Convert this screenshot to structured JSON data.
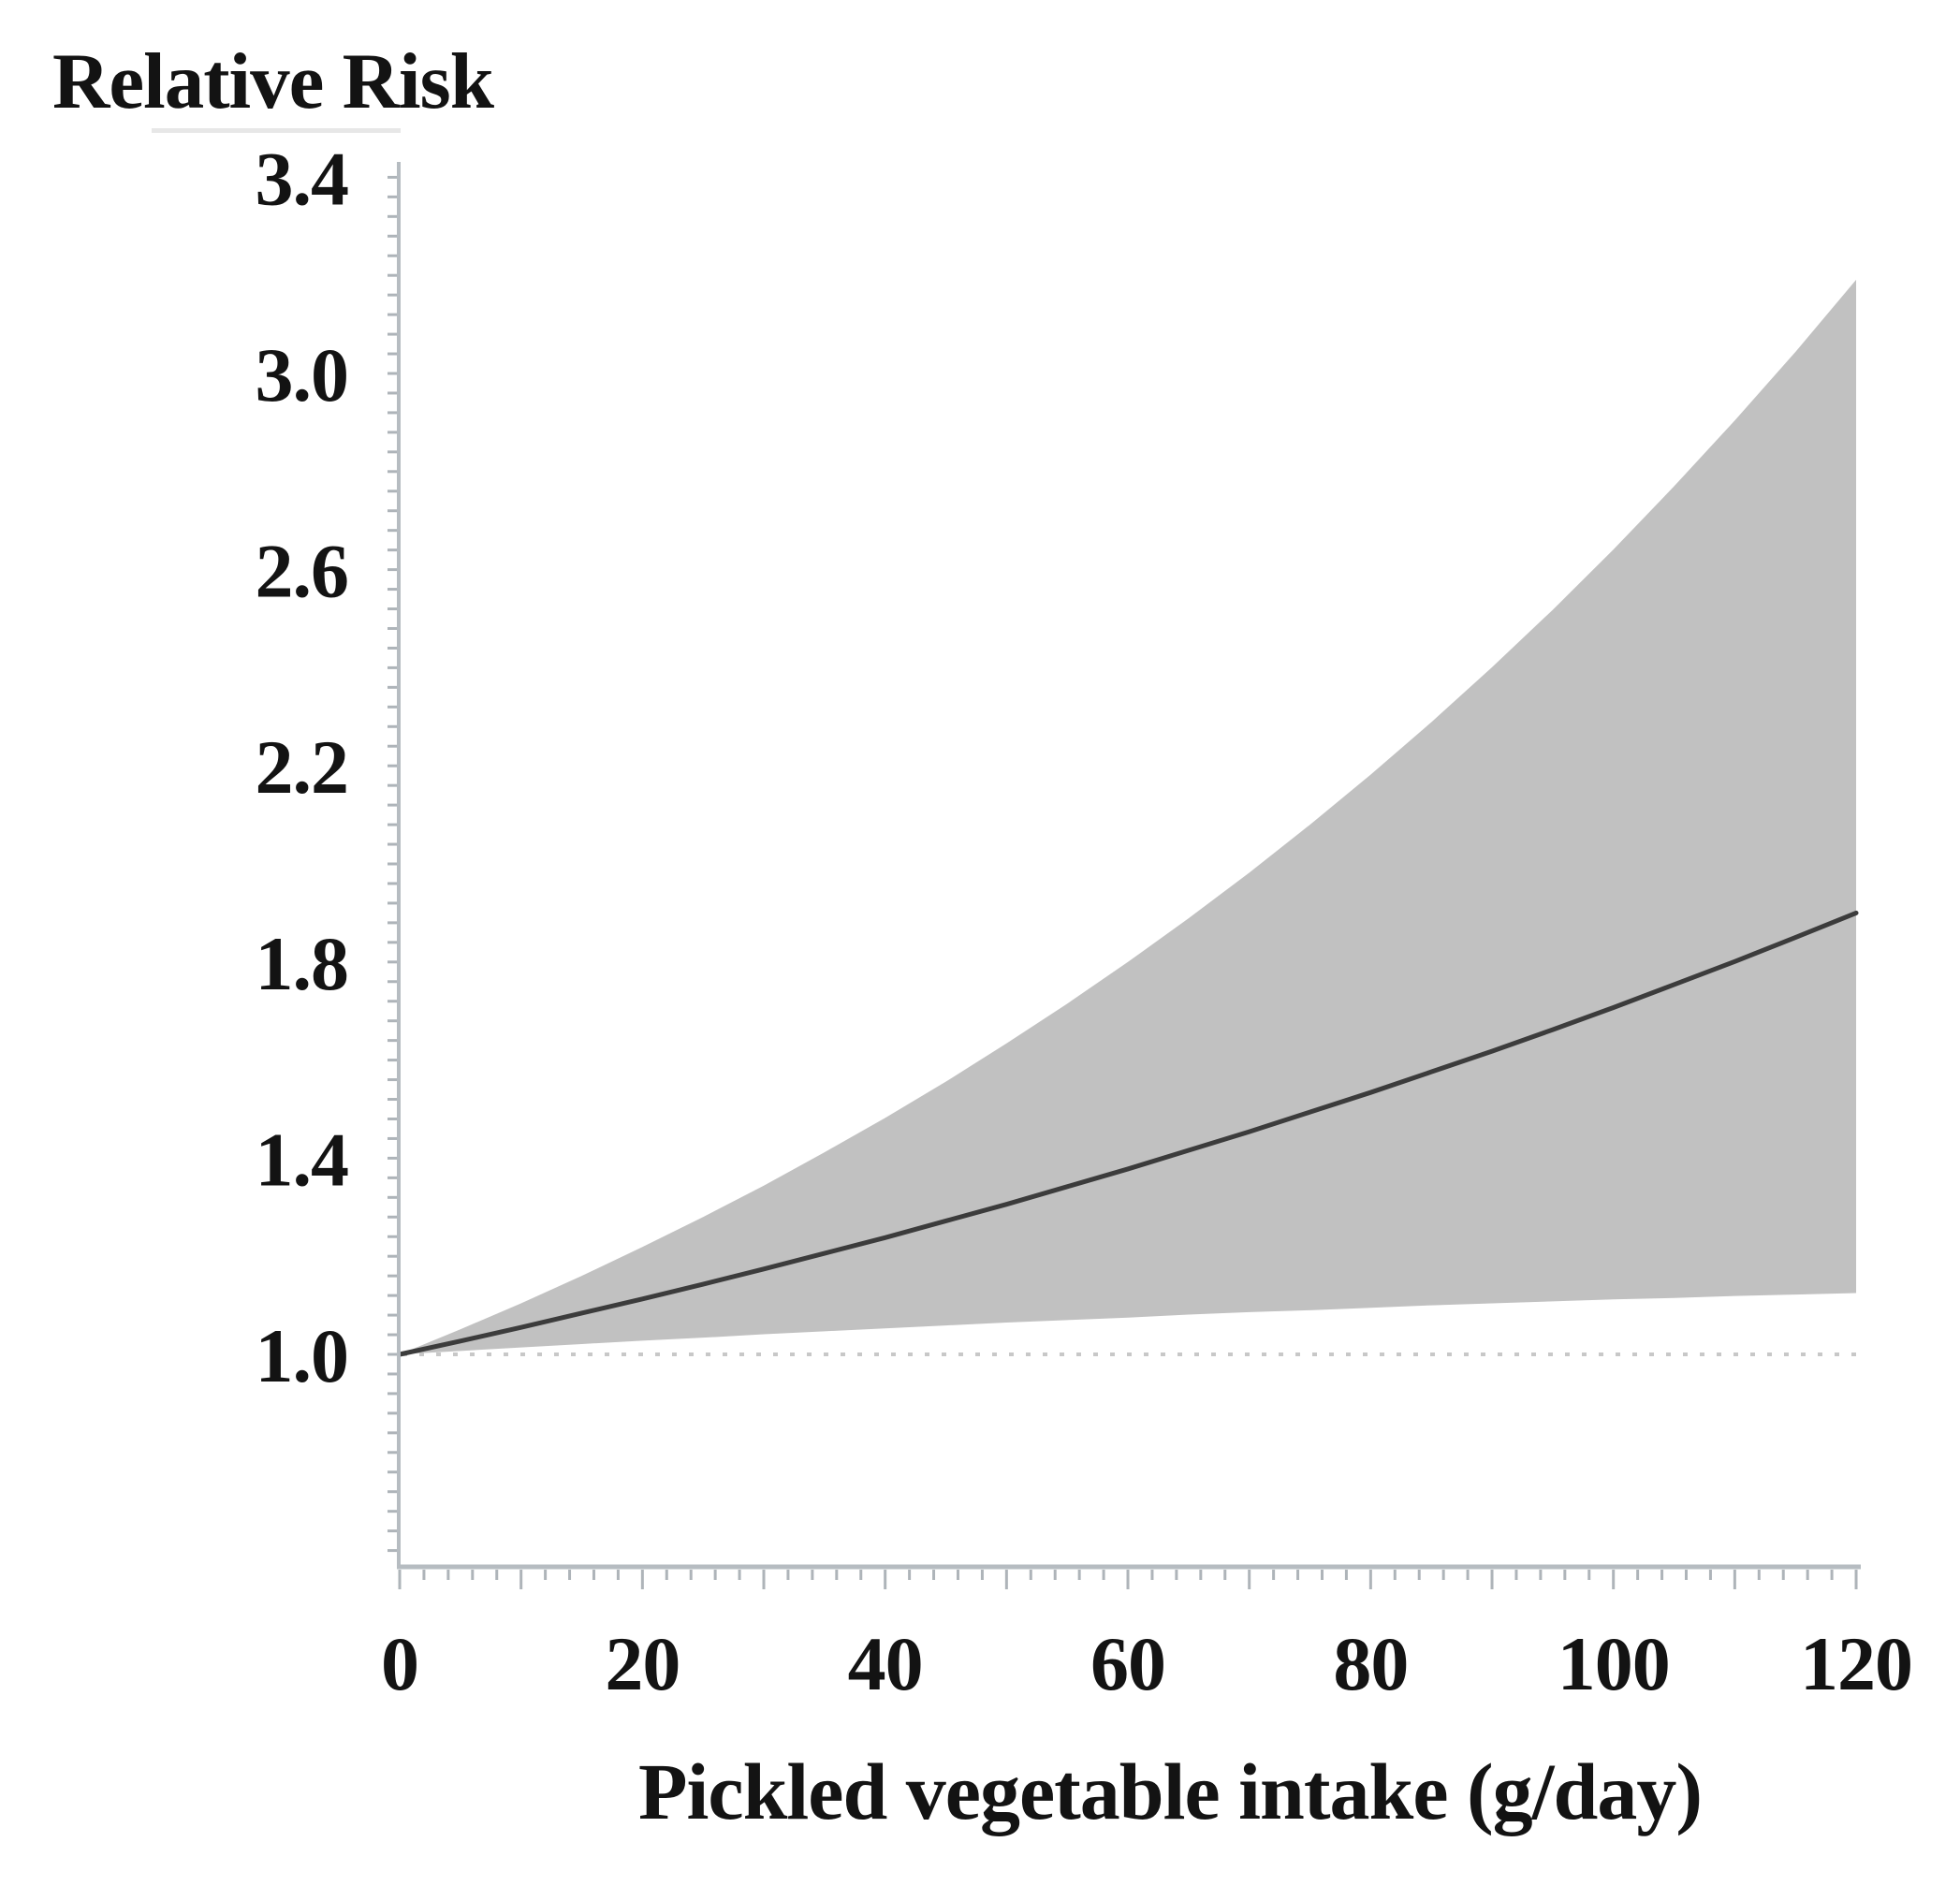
{
  "figure": {
    "y_axis_title": "Relative Risk",
    "x_axis_title": "Pickled vegetable intake (g/day)"
  },
  "chart_data": {
    "type": "line",
    "title": "",
    "ylabel": "Relative Risk",
    "xlabel": "Pickled vegetable intake (g/day)",
    "legend_position": "none",
    "grid": "off",
    "xlim": [
      0,
      120.4
    ],
    "ylim": [
      0.57,
      3.43
    ],
    "x_tick_labels": [
      "0",
      "20",
      "40",
      "60",
      "80",
      "100",
      "120"
    ],
    "x_tick_values": [
      0,
      20,
      40,
      60,
      80,
      100,
      120
    ],
    "x_minor_tick_step": 2,
    "x_medium_tick_step": 10,
    "y_tick_labels": [
      "1.0",
      "1.4",
      "1.8",
      "2.2",
      "2.6",
      "3.0",
      "3.4"
    ],
    "y_tick_values": [
      1.0,
      1.4,
      1.8,
      2.2,
      2.6,
      3.0,
      3.4
    ],
    "y_minor_tick_step": 0.04,
    "reference_line": {
      "y": 1.0,
      "style": "dotted"
    },
    "x": [
      0,
      5,
      10,
      15,
      20,
      25,
      30,
      35,
      40,
      45,
      50,
      55,
      60,
      65,
      70,
      75,
      80,
      85,
      90,
      95,
      100,
      105,
      110,
      115,
      120
    ],
    "series": [
      {
        "name": "relative-risk",
        "role": "central-estimate",
        "y": [
          1.0,
          1.027,
          1.055,
          1.084,
          1.113,
          1.143,
          1.174,
          1.206,
          1.238,
          1.272,
          1.306,
          1.342,
          1.378,
          1.416,
          1.454,
          1.494,
          1.534,
          1.576,
          1.618,
          1.662,
          1.707,
          1.754,
          1.801,
          1.85,
          1.9
        ]
      },
      {
        "name": "ci-lower",
        "role": "confidence-band-lower",
        "y": [
          1.0,
          1.007,
          1.014,
          1.021,
          1.028,
          1.034,
          1.041,
          1.047,
          1.053,
          1.059,
          1.065,
          1.07,
          1.075,
          1.081,
          1.086,
          1.09,
          1.095,
          1.1,
          1.104,
          1.108,
          1.112,
          1.115,
          1.119,
          1.122,
          1.125
        ]
      },
      {
        "name": "ci-upper",
        "role": "confidence-band-upper",
        "y": [
          1.0,
          1.051,
          1.104,
          1.16,
          1.219,
          1.28,
          1.344,
          1.412,
          1.482,
          1.556,
          1.634,
          1.715,
          1.8,
          1.889,
          1.982,
          2.08,
          2.182,
          2.289,
          2.401,
          2.518,
          2.641,
          2.77,
          2.904,
          3.044,
          3.191
        ]
      }
    ],
    "colors": {
      "band": "#c1c1c1",
      "line": "#3c3c3c",
      "axis": "#b6bcc1",
      "tick": "#aeb4b9",
      "reference_dotted": "#c8c8c8",
      "text": "#131313",
      "title_underline": "#e7e7e7"
    }
  }
}
